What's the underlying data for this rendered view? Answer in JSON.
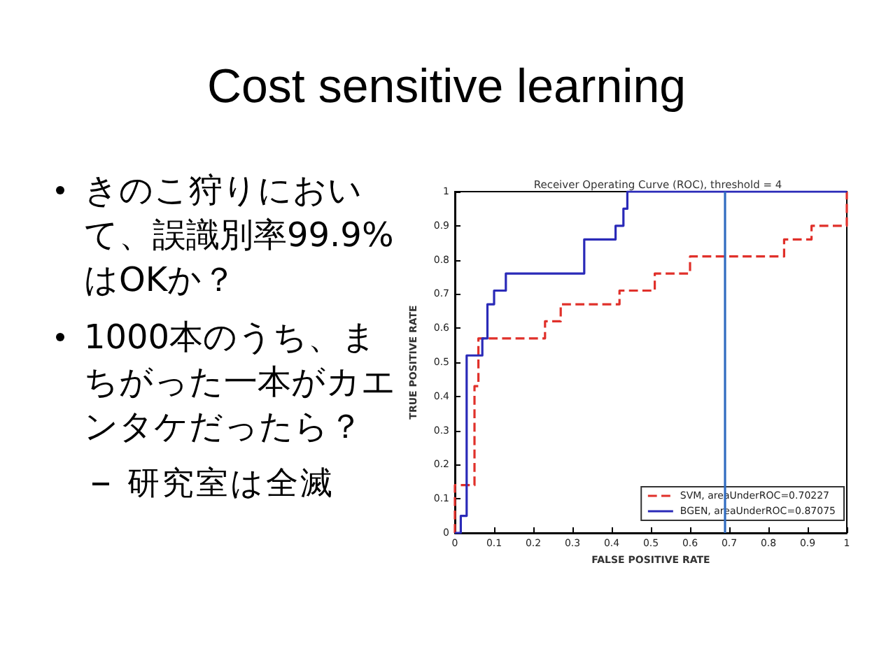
{
  "chart_data": {
    "type": "line",
    "title": "Cost sensitive learning",
    "subtitle": "Receiver Operating Curve (ROC), threshold = 4",
    "xlabel": "FALSE POSITIVE RATE",
    "ylabel": "TRUE POSITIVE RATE",
    "annotations": [
      "きのこ狩りにおいて、誤識別率99.9%はOKか？",
      "1000本のうち、まちがった一本がカエンタケだったら？",
      "研究室は全滅"
    ],
    "xlim": [
      0,
      1
    ],
    "ylim": [
      0,
      1
    ],
    "xticks": [
      0,
      0.1,
      0.2,
      0.3,
      0.4,
      0.5,
      0.6,
      0.7,
      0.8,
      0.9,
      1
    ],
    "yticks": [
      0,
      0.1,
      0.2,
      0.3,
      0.4,
      0.5,
      0.6,
      0.7,
      0.8,
      0.9,
      1
    ],
    "series": [
      {
        "name": "SVM, areaUnderROC=0.70227",
        "color": "#e0302a",
        "line_style": "dashed",
        "x": [
          0,
          0,
          0.05,
          0.05,
          0.06,
          0.06,
          0.23,
          0.23,
          0.27,
          0.27,
          0.42,
          0.42,
          0.51,
          0.51,
          0.6,
          0.6,
          0.84,
          0.84,
          0.91,
          0.91,
          1,
          1
        ],
        "values": [
          0,
          0.14,
          0.14,
          0.43,
          0.43,
          0.57,
          0.57,
          0.62,
          0.62,
          0.67,
          0.67,
          0.71,
          0.71,
          0.76,
          0.76,
          0.81,
          0.81,
          0.86,
          0.86,
          0.9,
          0.9,
          1
        ]
      },
      {
        "name": "BGEN, areaUnderROC=0.87075",
        "color": "#2a2ab8",
        "line_style": "solid",
        "x": [
          0,
          0.015,
          0.015,
          0.03,
          0.03,
          0.07,
          0.07,
          0.083,
          0.083,
          0.1,
          0.1,
          0.13,
          0.13,
          0.33,
          0.33,
          0.41,
          0.41,
          0.43,
          0.43,
          0.44,
          0.44,
          1
        ],
        "values": [
          0,
          0,
          0.05,
          0.05,
          0.52,
          0.52,
          0.57,
          0.57,
          0.67,
          0.67,
          0.71,
          0.71,
          0.76,
          0.76,
          0.86,
          0.86,
          0.9,
          0.9,
          0.95,
          0.95,
          1,
          1
        ]
      }
    ],
    "ref_lines": [
      {
        "axis": "x",
        "value": 0.69,
        "color": "#2f6bc0"
      }
    ],
    "legend": "bottom right",
    "grid": false
  }
}
